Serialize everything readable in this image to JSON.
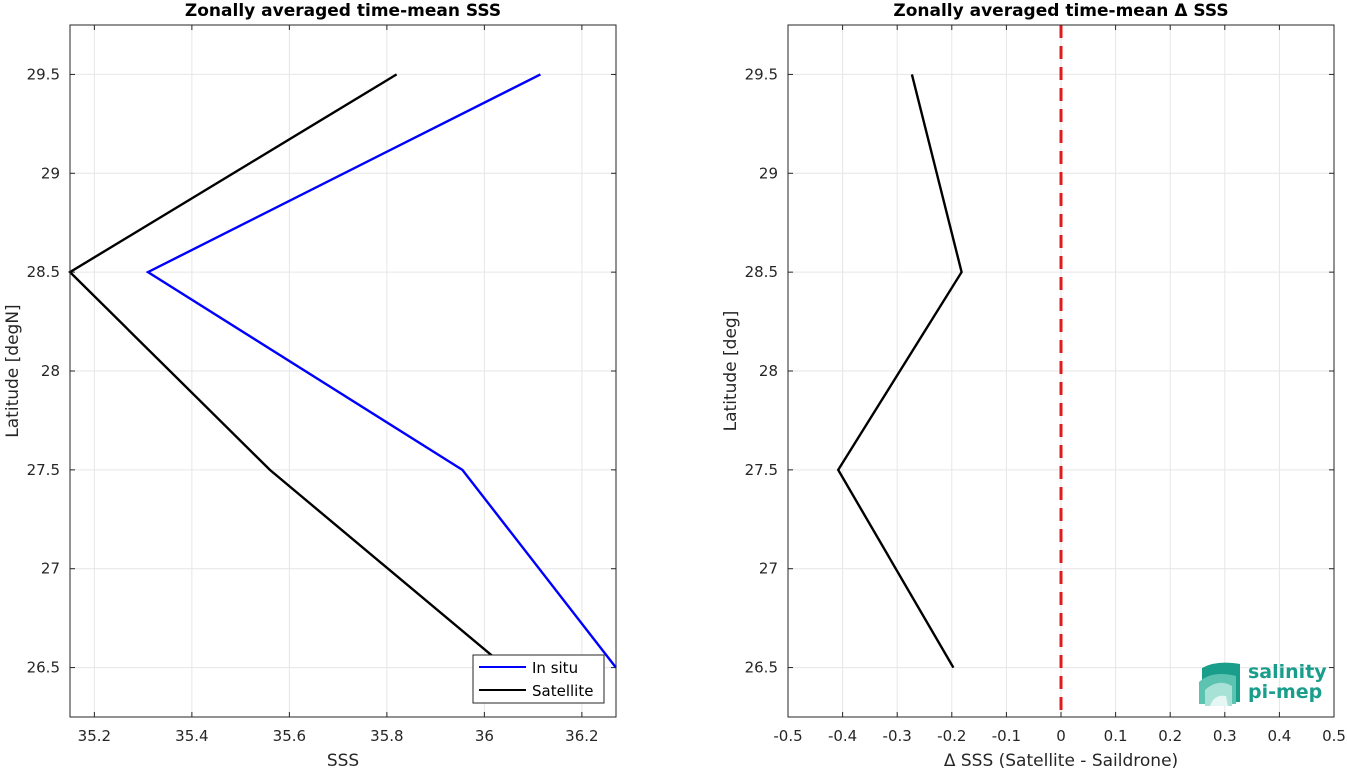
{
  "chart_data": [
    {
      "type": "line",
      "title": "Zonally averaged time-mean SSS",
      "xlabel": "SSS",
      "ylabel": "Latitude [degN]",
      "xlim": [
        35.15,
        36.27
      ],
      "ylim": [
        26.25,
        29.75
      ],
      "xticks": [
        "35.2",
        "35.4",
        "35.6",
        "35.8",
        "36",
        "36.2"
      ],
      "xtick_values": [
        35.2,
        35.4,
        35.6,
        35.8,
        36.0,
        36.2
      ],
      "yticks": [
        "26.5",
        "27",
        "27.5",
        "28",
        "28.5",
        "29",
        "29.5"
      ],
      "ytick_values": [
        26.5,
        27.0,
        27.5,
        28.0,
        28.5,
        29.0,
        29.5
      ],
      "grid": true,
      "legend_position": "bottom-right",
      "series": [
        {
          "name": "In situ",
          "color": "#0000ff",
          "x": [
            36.27,
            35.955,
            35.31,
            36.115
          ],
          "y": [
            26.5,
            27.5,
            28.5,
            29.5
          ]
        },
        {
          "name": "Satellite",
          "color": "#000000",
          "x": [
            36.045,
            35.56,
            35.15,
            35.82
          ],
          "y": [
            26.5,
            27.5,
            28.5,
            29.5
          ]
        }
      ]
    },
    {
      "type": "line",
      "title": "Zonally averaged time-mean Δ SSS",
      "xlabel": "Δ SSS (Satellite - Saildrone)",
      "ylabel": "Latitude [deg]",
      "xlim": [
        -0.5,
        0.5
      ],
      "ylim": [
        26.25,
        29.75
      ],
      "xticks": [
        "-0.5",
        "-0.4",
        "-0.3",
        "-0.2",
        "-0.1",
        "0",
        "0.1",
        "0.2",
        "0.3",
        "0.4",
        "0.5"
      ],
      "xtick_values": [
        -0.5,
        -0.4,
        -0.3,
        -0.2,
        -0.1,
        0,
        0.1,
        0.2,
        0.3,
        0.4,
        0.5
      ],
      "yticks": [
        "26.5",
        "27",
        "27.5",
        "28",
        "28.5",
        "29",
        "29.5"
      ],
      "ytick_values": [
        26.5,
        27.0,
        27.5,
        28.0,
        28.5,
        29.0,
        29.5
      ],
      "grid": true,
      "series": [
        {
          "color": "#000000",
          "x": [
            -0.197,
            -0.408,
            -0.182,
            -0.273
          ],
          "y": [
            26.5,
            27.5,
            28.5,
            29.5
          ]
        }
      ],
      "reference_line": {
        "x": 0,
        "color": "#e21a1a",
        "style": "dashed"
      }
    }
  ],
  "logo": {
    "line1": "salinity",
    "line2": "pi-mep",
    "color": "#1a9e8c"
  }
}
